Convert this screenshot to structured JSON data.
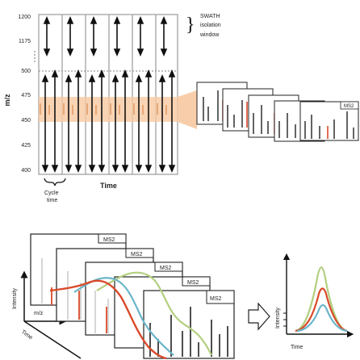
{
  "top_panel": {
    "y_axis_label": "m/z",
    "y_ticks": [
      "1200",
      "1175",
      "500",
      "475",
      "450",
      "425",
      "400"
    ],
    "x_axis_label": "Time",
    "cycle_label_line1": "Cycle",
    "cycle_label_line2": "time",
    "annotation_line1": "SWATH",
    "annotation_line2": "isolation",
    "annotation_line3": "window",
    "spectrum_label": "MS2",
    "highlight_color": "#f7c9a1"
  },
  "bottom_panel": {
    "y_axis_label": "Intensity",
    "x_axis_label": "m/z",
    "time_label": "Time",
    "stacked_spectra_labels": [
      "MS2",
      "MS2",
      "MS2",
      "MS2",
      "MS2"
    ],
    "right_y_label": "Intensity",
    "right_x_label": "Time",
    "trace_colors": {
      "red": "#d94a2a",
      "blue": "#6bb5c9",
      "green": "#b3cf7f"
    }
  }
}
